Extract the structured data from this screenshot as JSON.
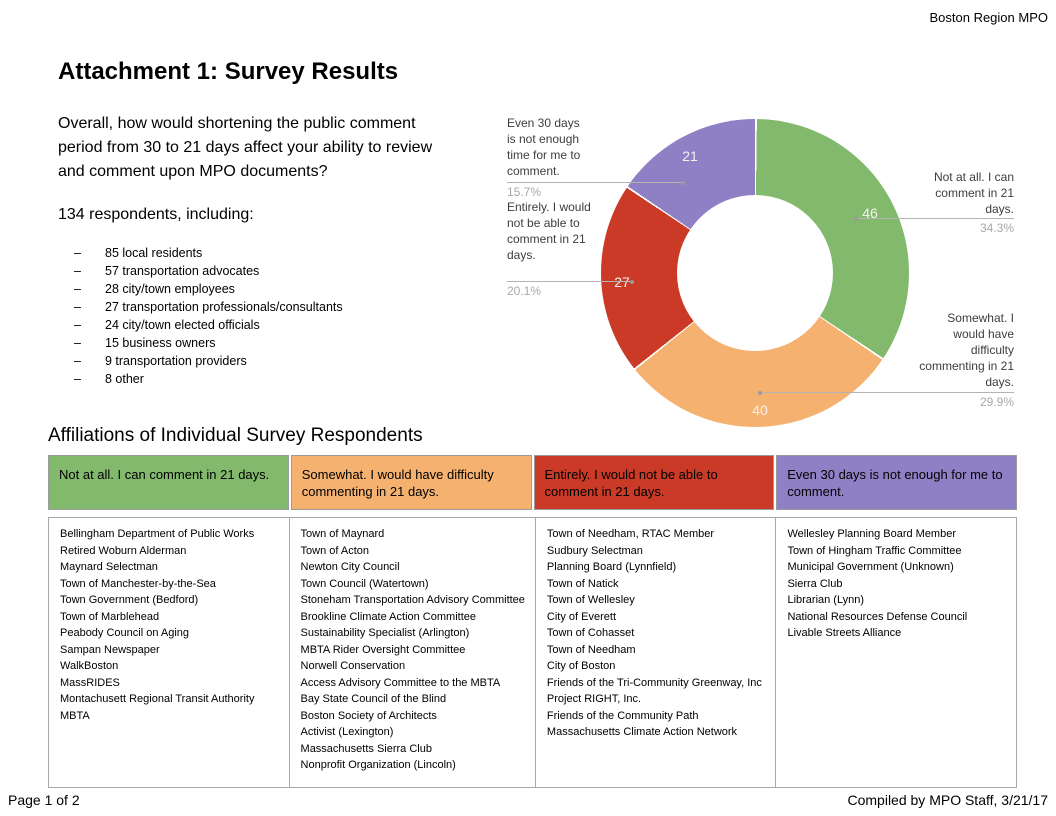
{
  "header": {
    "org": "Boston Region MPO"
  },
  "title": "Attachment 1: Survey Results",
  "question": "Overall, how would shortening the public comment period from 30 to 21 days affect your ability to review and comment upon MPO documents?",
  "respondents_intro": "134 respondents, including:",
  "respondent_breakdown": [
    "85 local residents",
    "57 transportation advocates",
    "28 city/town employees",
    "27 transportation professionals/consultants",
    "24 city/town elected officials",
    "15 business owners",
    "9 transportation providers",
    "8 other"
  ],
  "chart_data": {
    "type": "pie",
    "subtype": "donut",
    "start_angle_deg": 0,
    "direction": "clockwise",
    "total_respondents": 134,
    "slices": [
      {
        "label": "Not at all. I can comment in 21 days.",
        "value": 46,
        "pct": "34.3%",
        "color": "#83b96c"
      },
      {
        "label": "Somewhat. I would have difficulty commenting in 21 days.",
        "value": 40,
        "pct": "29.9%",
        "color": "#f5b170"
      },
      {
        "label": "Entirely. I would not be able to comment in 21 days.",
        "value": 27,
        "pct": "20.1%",
        "color": "#ca3a27"
      },
      {
        "label": "Even 30 days is not enough time for me to comment.",
        "value": 21,
        "pct": "15.7%",
        "color": "#8f80c5"
      }
    ]
  },
  "affiliations": {
    "heading": "Affiliations of Individual Survey Respondents",
    "columns": [
      {
        "header": "Not at all. I can comment in 21 days.",
        "color": "#83b96c",
        "entries": [
          "Bellingham Department of Public Works",
          "Retired Woburn Alderman",
          "Maynard Selectman",
          "Town of Manchester-by-the-Sea",
          "Town Government (Bedford)",
          "Town of Marblehead",
          "Peabody Council on Aging",
          "Sampan Newspaper",
          "WalkBoston",
          "MassRIDES",
          "Montachusett Regional Transit Authority",
          "MBTA"
        ]
      },
      {
        "header": "Somewhat. I would have difficulty commenting in 21 days.",
        "color": "#f5b170",
        "entries": [
          "Town of Maynard",
          "Town of Acton",
          "Newton City Council",
          "Town Council (Watertown)",
          "Stoneham Transportation Advisory Committee",
          "Brookline Climate Action Committee",
          "Sustainability Specialist (Arlington)",
          "MBTA Rider Oversight Committee",
          "Norwell Conservation",
          "Access Advisory Committee to the MBTA",
          "Bay State Council of the Blind",
          "Boston Society of Architects",
          "Activist (Lexington)",
          "Massachusetts Sierra Club",
          "Nonprofit Organization (Lincoln)"
        ]
      },
      {
        "header": "Entirely. I would not be able to comment in 21 days.",
        "color": "#ca3a27",
        "entries": [
          "Town of Needham, RTAC Member",
          "Sudbury Selectman",
          "Planning Board (Lynnfield)",
          "Town of Natick",
          "Town of Wellesley",
          "City of Everett",
          "Town of Cohasset",
          "Town of Needham",
          "City of Boston",
          "Friends of the Tri-Community Greenway, Inc",
          "Project RIGHT, Inc.",
          "Friends of the Community Path",
          "Massachusetts Climate Action Network"
        ]
      },
      {
        "header": "Even 30 days is not enough for me to comment.",
        "color": "#8f80c5",
        "entries": [
          "Wellesley Planning Board Member",
          "Town of Hingham Traffic Committee",
          "Municipal Government (Unknown)",
          "Sierra Club",
          "Librarian (Lynn)",
          "National Resources Defense Council",
          "Livable Streets Alliance"
        ]
      }
    ]
  },
  "footer": {
    "page": "Page 1 of 2",
    "compiled": "Compiled by MPO Staff, 3/21/17"
  }
}
